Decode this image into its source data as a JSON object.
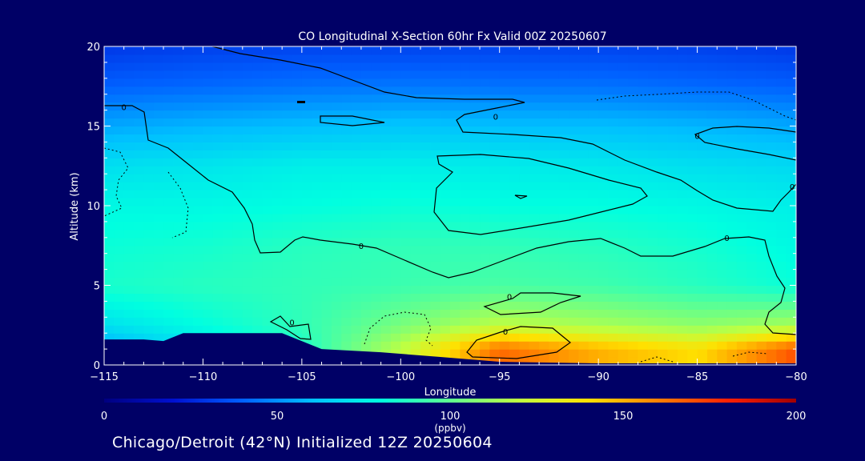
{
  "chart_data": {
    "type": "heatmap",
    "title": "CO Longitudinal X-Section 60hr  Fx Valid 00Z 20250607",
    "xlabel": "Longitude",
    "ylabel": "Altitude (km)",
    "xlim": [
      -115,
      -80
    ],
    "ylim": [
      0,
      20
    ],
    "x_ticks": [
      -115,
      -110,
      -105,
      -100,
      -95,
      -90,
      -85,
      -80
    ],
    "x_tick_labels": [
      "−115",
      "−110",
      "−105",
      "−100",
      "−95",
      "−90",
      "−85",
      "−80"
    ],
    "y_ticks": [
      0,
      5,
      10,
      15,
      20
    ],
    "y_tick_labels": [
      "0",
      "5",
      "10",
      "15",
      "20"
    ],
    "colorbar": {
      "label": "(ppbv)",
      "range": [
        0,
        200
      ],
      "ticks": [
        0,
        50,
        100,
        150,
        200
      ],
      "tick_labels": [
        "0",
        "50",
        "100",
        "150",
        "200"
      ],
      "colors": [
        "#000080",
        "#0010d0",
        "#0060ff",
        "#00c0ff",
        "#00ffe0",
        "#60ff90",
        "#c0ff40",
        "#ffe000",
        "#ff8000",
        "#ff2000",
        "#a00000"
      ]
    },
    "field": {
      "x": [
        -115,
        -110,
        -105,
        -100,
        -95,
        -90,
        -85,
        -80
      ],
      "y": [
        1,
        2.5,
        5,
        7.5,
        10,
        12.5,
        15,
        17.5,
        20
      ],
      "values": [
        [
          55,
          70,
          85,
          120,
          165,
          150,
          140,
          170
        ],
        [
          70,
          80,
          90,
          105,
          120,
          115,
          110,
          115
        ],
        [
          85,
          88,
          90,
          92,
          95,
          93,
          88,
          82
        ],
        [
          82,
          84,
          88,
          90,
          90,
          88,
          84,
          78
        ],
        [
          78,
          78,
          80,
          82,
          80,
          80,
          78,
          75
        ],
        [
          70,
          72,
          75,
          75,
          74,
          73,
          70,
          68
        ],
        [
          55,
          58,
          60,
          62,
          60,
          60,
          58,
          55
        ],
        [
          40,
          42,
          44,
          45,
          44,
          44,
          42,
          40
        ],
        [
          30,
          32,
          33,
          33,
          33,
          33,
          32,
          30
        ]
      ]
    },
    "terrain_km": {
      "x": [
        -115,
        -113,
        -112,
        -111,
        -110,
        -106,
        -104,
        -101,
        -98,
        -95,
        -90,
        -85,
        -80
      ],
      "y": [
        1.6,
        1.6,
        1.5,
        2.0,
        2.0,
        2.0,
        1.0,
        0.8,
        0.5,
        0.2,
        0.1,
        0.1,
        0.1
      ]
    },
    "contour_labels": [
      {
        "text": "0",
        "lon": -114,
        "alt": 16.2
      },
      {
        "text": "0",
        "lon": -95.2,
        "alt": 15.6
      },
      {
        "text": "0",
        "lon": -85,
        "alt": 14.4
      },
      {
        "text": "0",
        "lon": -80.2,
        "alt": 11.2
      },
      {
        "text": "0",
        "lon": -83.5,
        "alt": 8.0
      },
      {
        "text": "0",
        "lon": -102,
        "alt": 7.5
      },
      {
        "text": "0",
        "lon": -94.5,
        "alt": 4.3
      },
      {
        "text": "0",
        "lon": -105.5,
        "alt": 2.7
      },
      {
        "text": "0",
        "lon": -94.7,
        "alt": 2.1
      }
    ]
  },
  "footer": "Chicago/Detroit (42°N) Initialized 12Z 20250604"
}
